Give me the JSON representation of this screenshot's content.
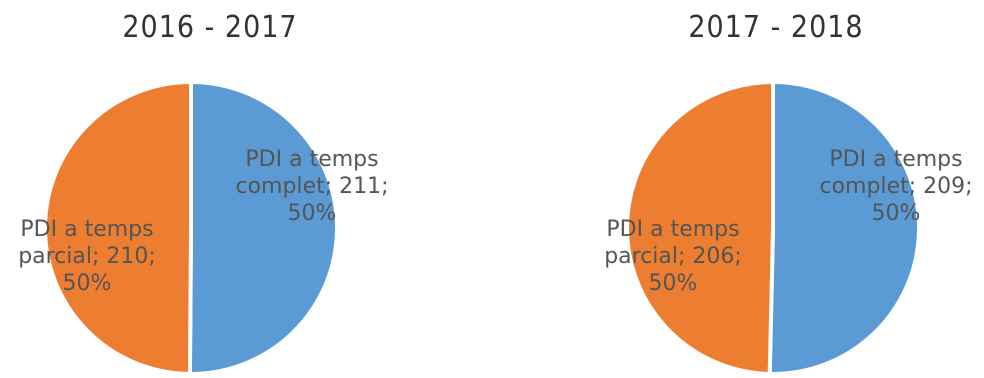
{
  "chart_data": [
    {
      "type": "pie",
      "title": "2016 - 2017",
      "colors": {
        "complet": "#5b9bd5",
        "parcial": "#ed7d31"
      },
      "slices": [
        {
          "label": "PDI a temps complet",
          "value": 211,
          "percent": "50%",
          "label_lines": [
            "PDI a temps",
            "complet; 211;",
            "50%"
          ]
        },
        {
          "label": "PDI a temps parcial",
          "value": 210,
          "percent": "50%",
          "label_lines": [
            "PDI a temps",
            "parcial; 210;",
            "50%"
          ]
        }
      ]
    },
    {
      "type": "pie",
      "title": "2017 - 2018",
      "colors": {
        "complet": "#5b9bd5",
        "parcial": "#ed7d31"
      },
      "slices": [
        {
          "label": "PDI a temps complet",
          "value": 209,
          "percent": "50%",
          "label_lines": [
            "PDI a temps",
            "complet; 209;",
            "50%"
          ]
        },
        {
          "label": "PDI a temps parcial",
          "value": 206,
          "percent": "50%",
          "label_lines": [
            "PDI a temps",
            "parcial; 206;",
            "50%"
          ]
        }
      ]
    }
  ]
}
